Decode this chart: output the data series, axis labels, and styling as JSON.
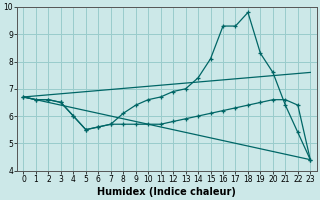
{
  "title": "",
  "xlabel": "Humidex (Indice chaleur)",
  "ylabel": "",
  "background_color": "#cce8e8",
  "grid_color": "#99cccc",
  "line_color": "#006666",
  "xlim": [
    -0.5,
    23.5
  ],
  "ylim": [
    4,
    10
  ],
  "yticks": [
    4,
    5,
    6,
    7,
    8,
    9,
    10
  ],
  "xticks": [
    0,
    1,
    2,
    3,
    4,
    5,
    6,
    7,
    8,
    9,
    10,
    11,
    12,
    13,
    14,
    15,
    16,
    17,
    18,
    19,
    20,
    21,
    22,
    23
  ],
  "series1_x": [
    0,
    1,
    2,
    3,
    4,
    5,
    6,
    7,
    8,
    9,
    10,
    11,
    12,
    13,
    14,
    15,
    16,
    17,
    18,
    19,
    20,
    21,
    22,
    23
  ],
  "series1_y": [
    6.7,
    6.6,
    6.6,
    6.5,
    6.0,
    5.5,
    5.6,
    5.7,
    6.1,
    6.4,
    6.6,
    6.7,
    6.9,
    7.0,
    7.4,
    8.1,
    9.3,
    9.3,
    9.8,
    8.3,
    7.6,
    6.4,
    5.4,
    4.4
  ],
  "series2_x": [
    0,
    1,
    2,
    3,
    4,
    5,
    6,
    7,
    8,
    9,
    10,
    11,
    12,
    13,
    14,
    15,
    16,
    17,
    18,
    19,
    20,
    21,
    22,
    23
  ],
  "series2_y": [
    6.7,
    6.6,
    6.6,
    6.5,
    6.0,
    5.5,
    5.6,
    5.7,
    5.7,
    5.7,
    5.7,
    5.7,
    5.8,
    5.9,
    6.0,
    6.1,
    6.2,
    6.3,
    6.4,
    6.5,
    6.6,
    6.6,
    6.4,
    4.4
  ],
  "line3_x": [
    0,
    23
  ],
  "line3_y": [
    6.7,
    4.4
  ],
  "line4_x": [
    0,
    23
  ],
  "line4_y": [
    6.7,
    7.6
  ],
  "xlabel_fontsize": 7,
  "tick_fontsize": 5.5
}
